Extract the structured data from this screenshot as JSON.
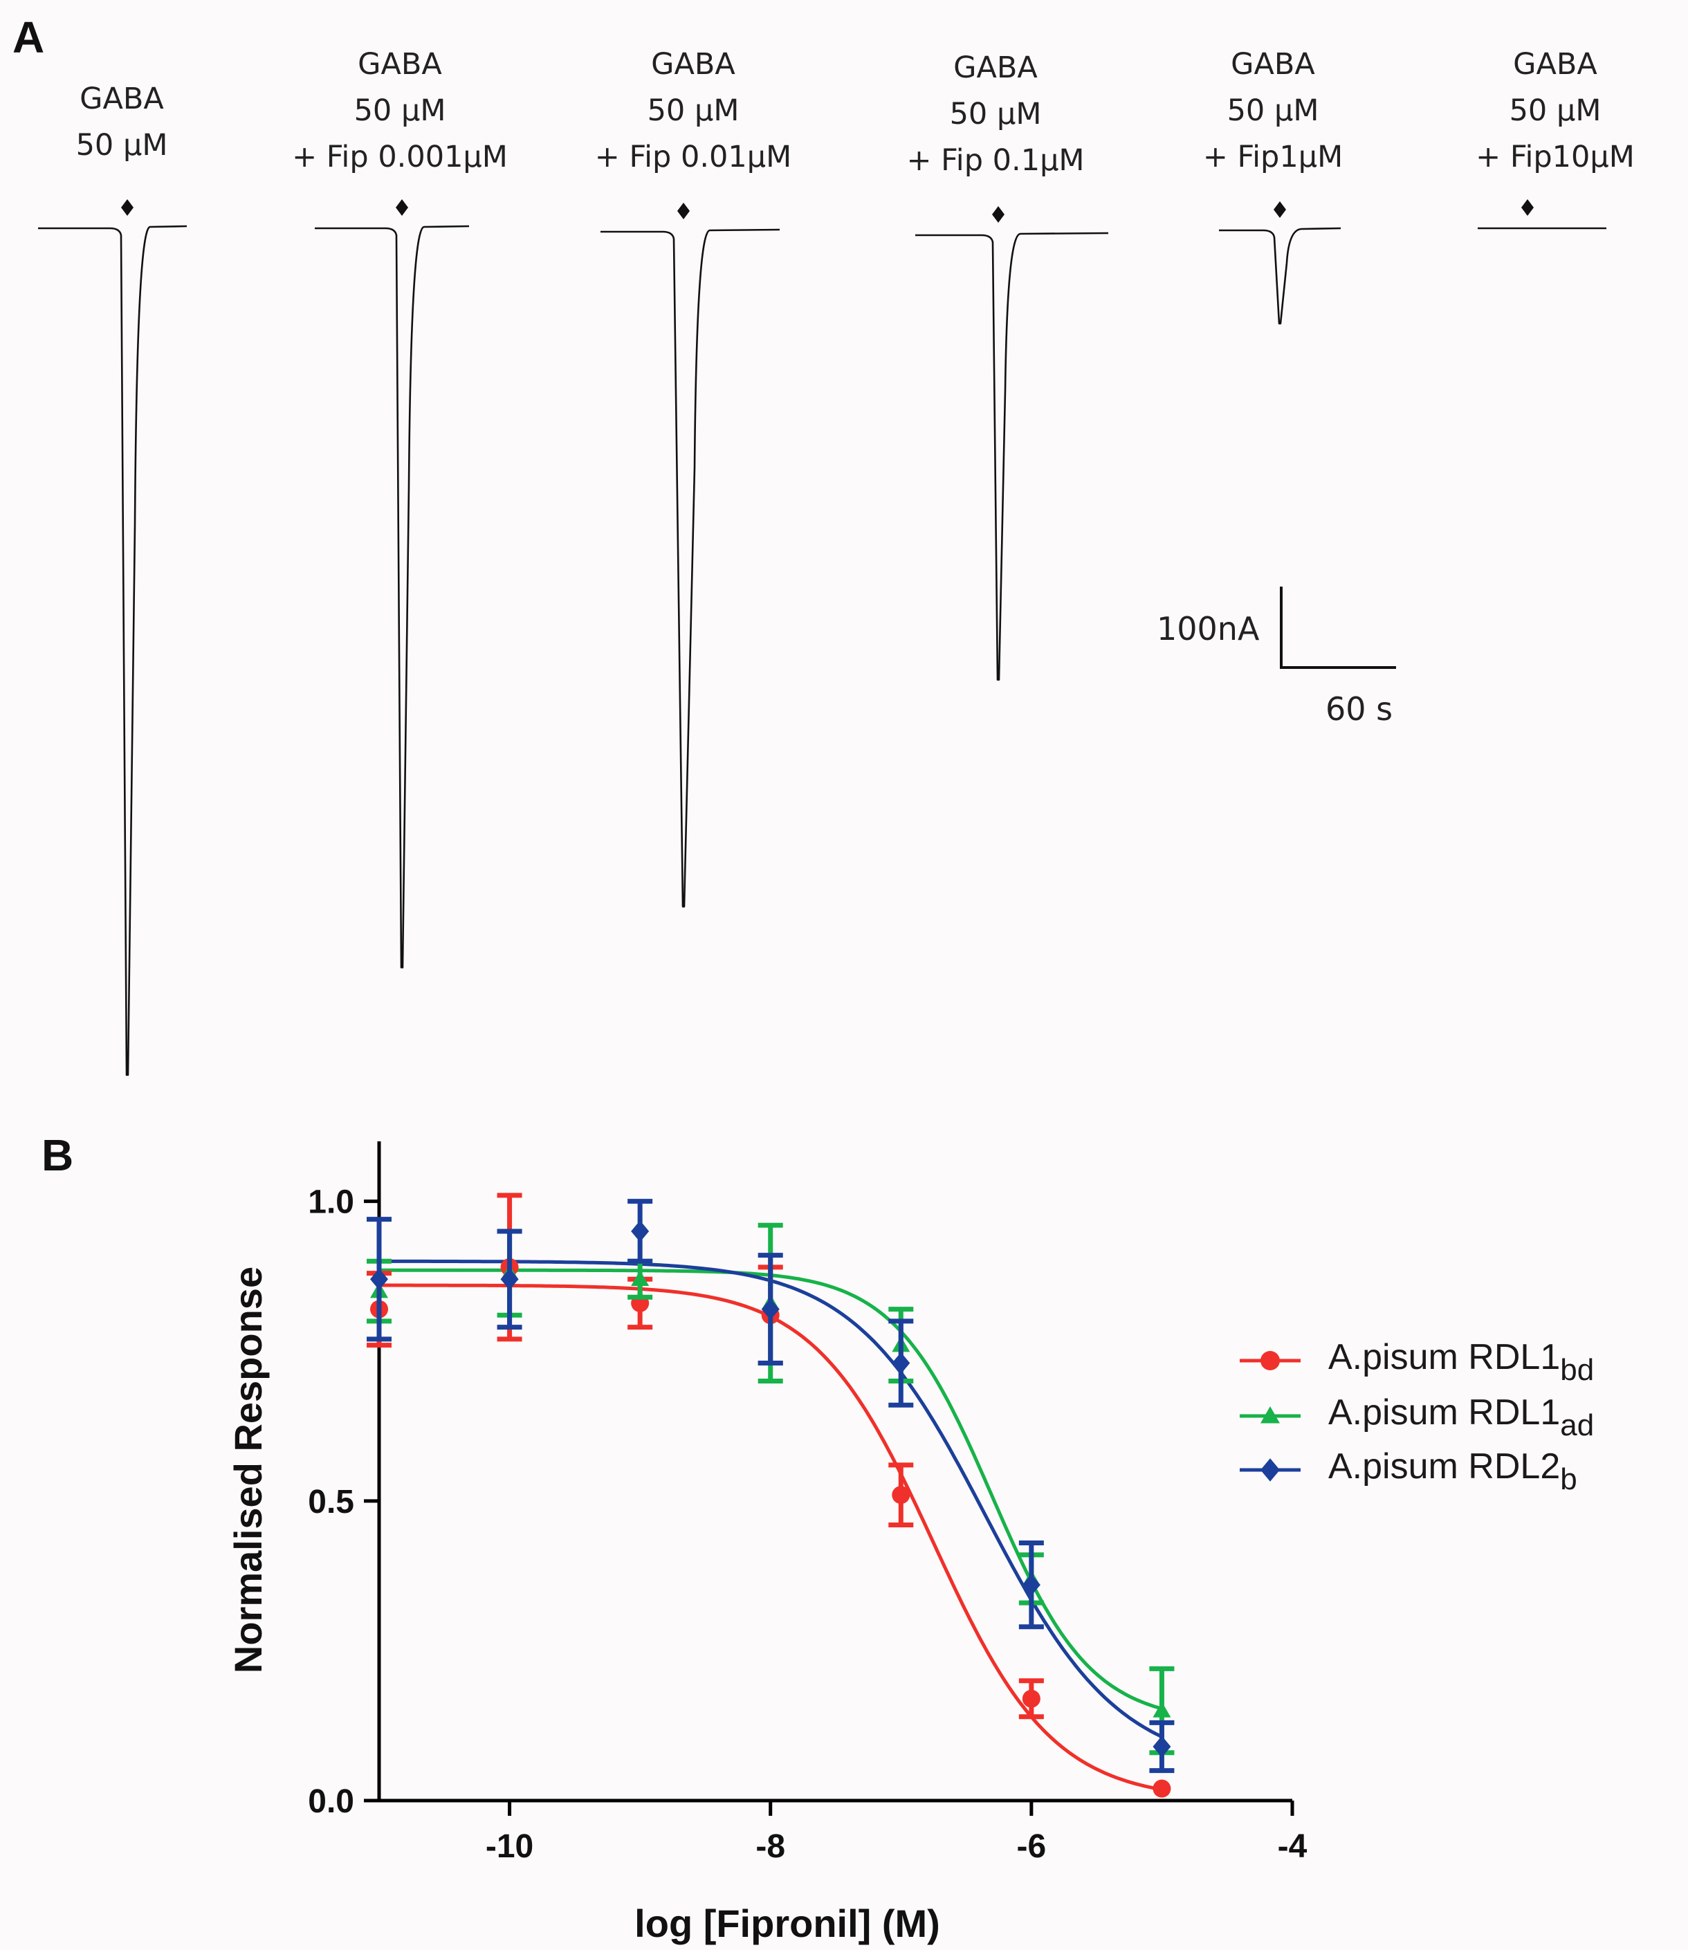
{
  "panel_a": {
    "letter": "A",
    "traces": [
      {
        "lines": [
          "GABA",
          "50 µM"
        ],
        "peak": 1.0
      },
      {
        "lines": [
          "GABA",
          "50 µM",
          "+ Fip 0.001µM"
        ],
        "peak": 0.873
      },
      {
        "lines": [
          "GABA",
          "50 µM",
          "+ Fip 0.01µM"
        ],
        "peak": 0.797
      },
      {
        "lines": [
          "GABA",
          "50 µM",
          "+ Fip 0.1µM"
        ],
        "peak": 0.525
      },
      {
        "lines": [
          "GABA",
          "50 µM",
          "+ Fip1µM"
        ],
        "peak": 0.11
      },
      {
        "lines": [
          "GABA",
          "50 µM",
          "+ Fip10µM"
        ],
        "peak": 0.0
      }
    ],
    "scale_bar": {
      "current_label": "100nA",
      "time_label": "60 s"
    }
  },
  "panel_b": {
    "letter": "B"
  },
  "chart_data": {
    "type": "scatter",
    "xlabel": "log [Fipronil] (M)",
    "ylabel": "Normalised Response",
    "xlim": [
      -11,
      -4
    ],
    "ylim": [
      0,
      1.1
    ],
    "xticks": [
      -10,
      -8,
      -6,
      -4
    ],
    "yticks": [
      0.0,
      0.5,
      1.0
    ],
    "xtick_labels": [
      "-10",
      "-8",
      "-6",
      "-4"
    ],
    "ytick_labels": [
      "0.0",
      "0.5",
      "1.0"
    ],
    "grid": false,
    "legend_position": "right",
    "series": [
      {
        "name": "A.pisum RDL1",
        "subscript": "bd",
        "color": "#f0302a",
        "marker": "circle",
        "x": [
          -11,
          -10,
          -9,
          -8,
          -7,
          -6,
          -5
        ],
        "y": [
          0.82,
          0.89,
          0.83,
          0.81,
          0.51,
          0.17,
          0.02
        ],
        "err": [
          0.06,
          0.12,
          0.04,
          0.08,
          0.05,
          0.03,
          0.0
        ],
        "fit": {
          "top": 0.86,
          "bottom": 0.0,
          "logic50": -6.75,
          "hill": 0.95
        }
      },
      {
        "name": "A.pisum RDL1",
        "subscript": "ad",
        "color": "#17b24a",
        "marker": "triangle",
        "x": [
          -11,
          -10,
          -9,
          -8,
          -7,
          -6,
          -5
        ],
        "y": [
          0.85,
          0.88,
          0.87,
          0.83,
          0.76,
          0.37,
          0.15
        ],
        "err": [
          0.05,
          0.07,
          0.03,
          0.13,
          0.06,
          0.04,
          0.07
        ],
        "fit": {
          "top": 0.885,
          "bottom": 0.13,
          "logic50": -6.3,
          "hill": 1.15
        }
      },
      {
        "name": "A.pisum RDL2",
        "subscript": "b",
        "color": "#1c3f9b",
        "marker": "diamond",
        "x": [
          -11,
          -10,
          -9,
          -8,
          -7,
          -6,
          -5
        ],
        "y": [
          0.87,
          0.87,
          0.95,
          0.82,
          0.73,
          0.36,
          0.09
        ],
        "err": [
          0.1,
          0.08,
          0.05,
          0.09,
          0.07,
          0.07,
          0.04
        ],
        "fit": {
          "top": 0.9,
          "bottom": 0.05,
          "logic50": -6.35,
          "hill": 0.85
        }
      }
    ]
  }
}
